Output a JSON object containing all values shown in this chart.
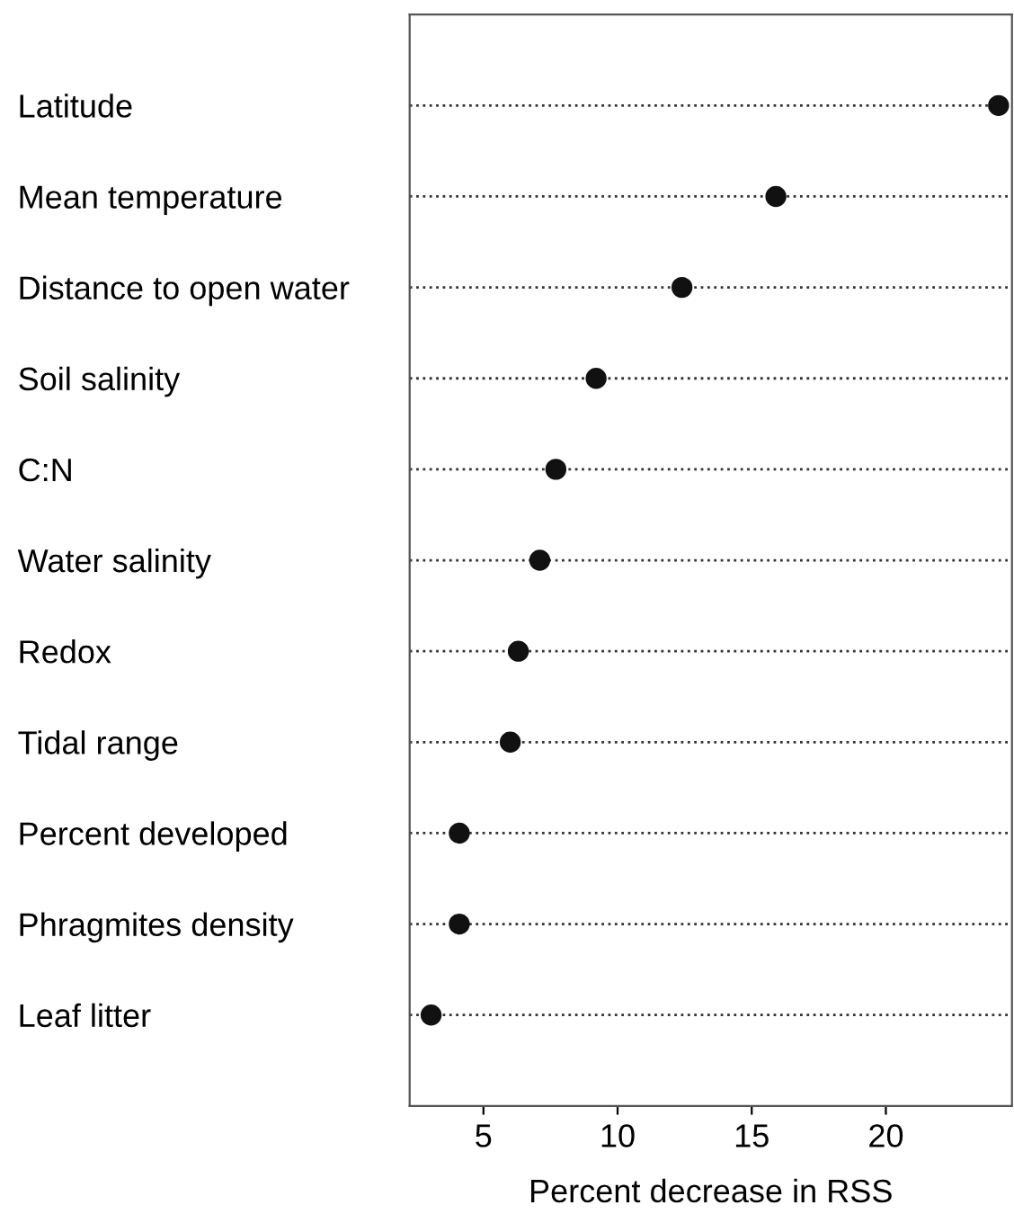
{
  "chart_data": {
    "type": "scatter",
    "xlabel": "Percent decrease in RSS",
    "categories": [
      "Latitude",
      "Mean temperature",
      "Distance to open water",
      "Soil salinity",
      "C:N",
      "Water salinity",
      "Redox",
      "Tidal range",
      "Percent developed",
      "Phragmites density",
      "Leaf litter"
    ],
    "series": [
      {
        "color": "#111111",
        "values": [
          24.2,
          15.9,
          12.4,
          9.2,
          7.7,
          7.1,
          6.3,
          6.0,
          4.1,
          4.1,
          3.05
        ]
      }
    ],
    "xlim": [
      2.25,
      24.7
    ],
    "xticks": [
      5,
      10,
      15,
      20
    ],
    "grid": "y",
    "orientation": "horizontal",
    "line_style": "dotted",
    "marker": "circle"
  }
}
